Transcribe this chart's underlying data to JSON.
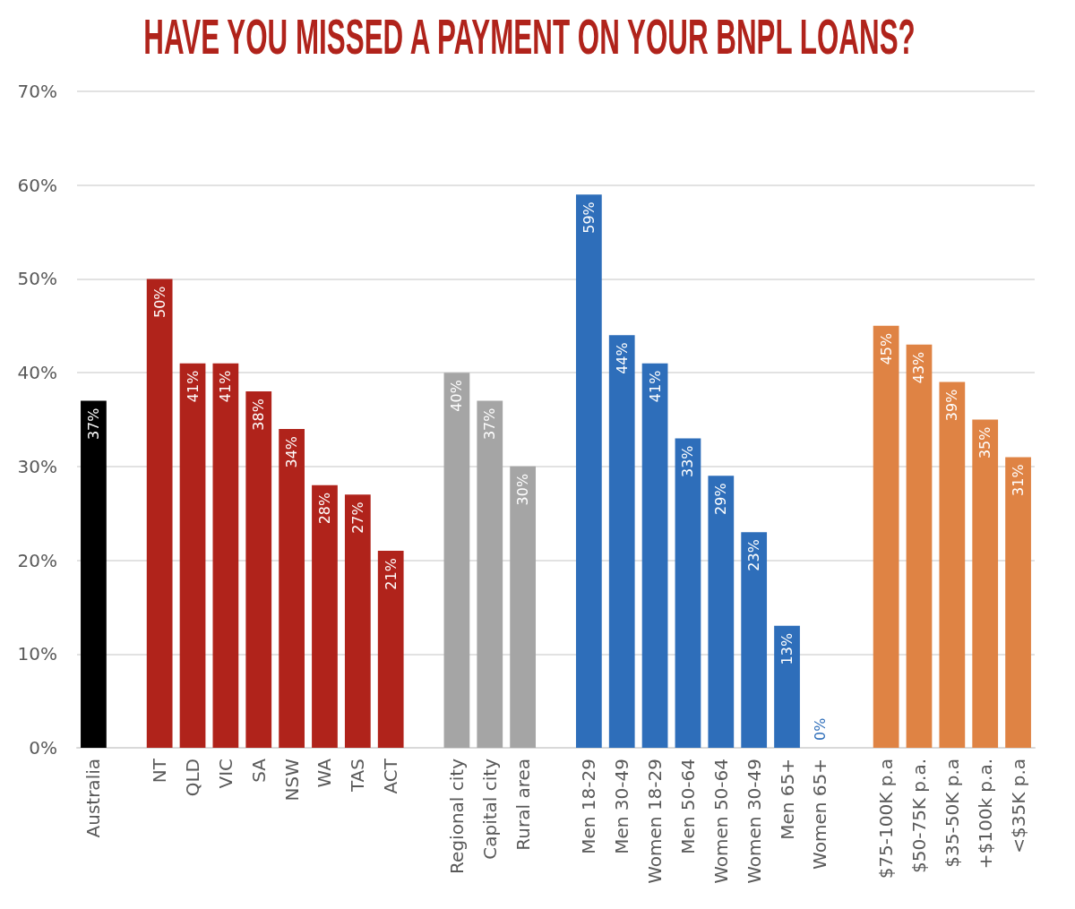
{
  "chart_data": {
    "type": "bar",
    "title": "HAVE YOU MISSED A PAYMENT ON YOUR BNPL LOANS?",
    "categories": [
      "Australia",
      null,
      "NT",
      "QLD",
      "VIC",
      "SA",
      "NSW",
      "WA",
      "TAS",
      "ACT",
      null,
      "Regional city",
      "Capital city",
      "Rural area",
      null,
      "Men 18-29",
      "Men 30-49",
      "Women 18-29",
      "Men 50-64",
      "Women 50-64",
      "Women 30-49",
      "Men 65+",
      "Women 65+",
      null,
      "$75-100K p.a",
      "$50-75K p.a.",
      "$35-50K p.a",
      "+$100k p.a.",
      "<$35K p.a"
    ],
    "values": [
      37,
      null,
      50,
      41,
      41,
      38,
      34,
      28,
      27,
      21,
      null,
      40,
      37,
      30,
      null,
      59,
      44,
      41,
      33,
      29,
      23,
      13,
      0,
      null,
      45,
      43,
      39,
      35,
      31
    ],
    "value_labels": [
      "37%",
      null,
      "50%",
      "41%",
      "41%",
      "38%",
      "34%",
      "28%",
      "27%",
      "21%",
      null,
      "40%",
      "37%",
      "30%",
      null,
      "59%",
      "44%",
      "41%",
      "33%",
      "29%",
      "23%",
      "13%",
      "0%",
      null,
      "45%",
      "43%",
      "39%",
      "35%",
      "31%"
    ],
    "colors": [
      "#000000",
      null,
      "#b0231b",
      "#b0231b",
      "#b0231b",
      "#b0231b",
      "#b0231b",
      "#b0231b",
      "#b0231b",
      "#b0231b",
      null,
      "#a5a5a5",
      "#a5a5a5",
      "#a5a5a5",
      null,
      "#2e6eba",
      "#2e6eba",
      "#2e6eba",
      "#2e6eba",
      "#2e6eba",
      "#2e6eba",
      "#2e6eba",
      "#2e6eba",
      null,
      "#df8344",
      "#df8344",
      "#df8344",
      "#df8344",
      "#df8344"
    ],
    "ylim": [
      0,
      70
    ],
    "yticks": [
      {
        "value": 0,
        "label": "0%"
      },
      {
        "value": 10,
        "label": "10%"
      },
      {
        "value": 20,
        "label": "20%"
      },
      {
        "value": 30,
        "label": "30%"
      },
      {
        "value": 40,
        "label": "40%"
      },
      {
        "value": 50,
        "label": "50%"
      },
      {
        "value": 60,
        "label": "60%"
      },
      {
        "value": 70,
        "label": "70%"
      }
    ],
    "grid": "y"
  }
}
